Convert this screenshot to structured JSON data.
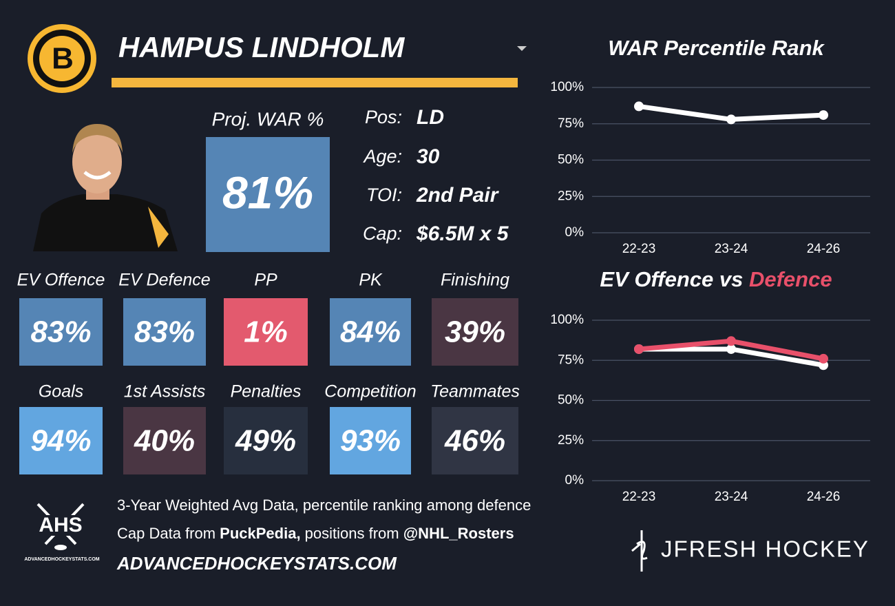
{
  "header": {
    "team_logo": "B",
    "name": "HAMPUS LINDHOLM"
  },
  "projection": {
    "label": "Proj. WAR %",
    "value": "81%",
    "color": "#5585b5"
  },
  "info": [
    {
      "label": "Pos:",
      "value": "LD"
    },
    {
      "label": "Age:",
      "value": "30"
    },
    {
      "label": "TOI:",
      "value": "2nd Pair"
    },
    {
      "label": "Cap:",
      "value": "$6.5M x 5"
    }
  ],
  "tiles": [
    [
      {
        "label": "EV Offence",
        "value": "83%",
        "color": "#5585b5"
      },
      {
        "label": "EV Defence",
        "value": "83%",
        "color": "#5585b5"
      },
      {
        "label": "PP",
        "value": "1%",
        "color": "#e35a6e"
      },
      {
        "label": "PK",
        "value": "84%",
        "color": "#5585b5"
      },
      {
        "label": "Finishing",
        "value": "39%",
        "color": "#4a3643"
      }
    ],
    [
      {
        "label": "Goals",
        "value": "94%",
        "color": "#62a6e0"
      },
      {
        "label": "1st Assists",
        "value": "40%",
        "color": "#4a3643"
      },
      {
        "label": "Penalties",
        "value": "49%",
        "color": "#272f3e"
      },
      {
        "label": "Competition",
        "value": "93%",
        "color": "#62a6e0"
      },
      {
        "label": "Teammates",
        "value": "46%",
        "color": "#303544"
      }
    ]
  ],
  "footer": {
    "logo_text": "AHS",
    "logo_caption": "ADVANCEDHOCKEYSTATS.COM",
    "line1": "3-Year Weighted Avg Data, percentile ranking among defence",
    "line2": [
      "Cap Data from ",
      "PuckPedia,",
      " positions from ",
      "@NHL_Rosters"
    ],
    "site": "ADVANCEDHOCKEYSTATS.COM",
    "brand": "JFRESH HOCKEY"
  },
  "chart_data": [
    {
      "type": "line",
      "title": "WAR Percentile Rank",
      "categories": [
        "22-23",
        "23-24",
        "24-26"
      ],
      "series": [
        {
          "color": "#ffffff",
          "values": [
            87,
            78,
            81
          ]
        }
      ],
      "ylim": [
        0,
        100
      ],
      "yticks": [
        {
          "value": 0,
          "label": "0%"
        },
        {
          "value": 25,
          "label": "25%"
        },
        {
          "value": 50,
          "label": "50%"
        },
        {
          "value": 75,
          "label": "75%"
        },
        {
          "value": 100,
          "label": "100%"
        }
      ],
      "grid": true
    },
    {
      "type": "line",
      "title_joiner": "vs",
      "categories": [
        "22-23",
        "23-24",
        "24-26"
      ],
      "series": [
        {
          "name": "EV Offence",
          "color": "#ffffff",
          "values": [
            82,
            82,
            72
          ]
        },
        {
          "name": "Defence",
          "color": "#e8506a",
          "values": [
            82,
            87,
            76
          ]
        }
      ],
      "ylim": [
        0,
        100
      ],
      "yticks": [
        {
          "value": 0,
          "label": "0%"
        },
        {
          "value": 25,
          "label": "25%"
        },
        {
          "value": 50,
          "label": "50%"
        },
        {
          "value": 75,
          "label": "75%"
        },
        {
          "value": 100,
          "label": "100%"
        }
      ],
      "grid": true
    }
  ]
}
